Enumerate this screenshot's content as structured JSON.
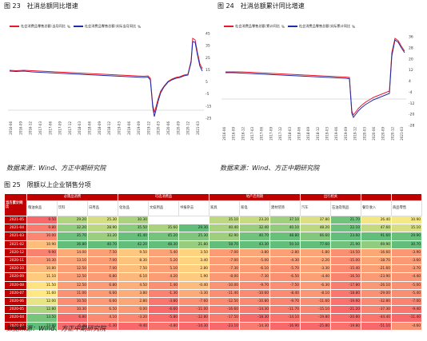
{
  "fig23": {
    "title_num": "图 23",
    "title": "社消总额同比增速",
    "legend": [
      {
        "label": "社会消费品零售总额:当月同比",
        "unit": "%",
        "color": "#e8192c"
      },
      {
        "label": "社会消费品零售总额:实际当月同比",
        "unit": "%",
        "color": "#1f2ea8"
      }
    ],
    "y_ticks": [
      "45",
      "35",
      "25",
      "15",
      "5",
      "-5",
      "-15",
      "-25"
    ],
    "x_ticks": [
      "2016-06",
      "2016-09",
      "2016-12",
      "2017-03",
      "2017-06",
      "2017-09",
      "2017-12",
      "2018-03",
      "2018-06",
      "2018-09",
      "2018-12",
      "2019-03",
      "2019-06",
      "2019-09",
      "2019-12",
      "2020-03",
      "2020-06",
      "2020-09",
      "2020-12",
      "2021-03"
    ]
  },
  "fig24": {
    "title_num": "图 24",
    "title": "社消总额累计同比增速",
    "legend": [
      {
        "label": "社会消费品零售总额:累计同比",
        "unit": "%",
        "color": "#e8192c"
      },
      {
        "label": "社会消费品零售总额:实际累计同比",
        "unit": "%",
        "color": "#1f2ea8"
      }
    ],
    "y_ticks": [
      "36",
      "28",
      "20",
      "12",
      "4",
      "-4",
      "-12",
      "-20",
      "-28"
    ],
    "x_ticks": [
      "2016-06",
      "2016-09",
      "2016-12",
      "2017-03",
      "2017-06",
      "2017-09",
      "2017-12",
      "2018-03",
      "2018-06",
      "2018-09",
      "2018-12",
      "2019-03",
      "2019-06",
      "2019-09",
      "2019-12",
      "2020-03",
      "2020-06",
      "2020-09",
      "2020-12",
      "2021-03"
    ]
  },
  "source1": "数据来源：Wind、方正中期研究院",
  "source2": "数据来源：Wind、方正中期研究院",
  "source3": "数据来源：Wind、方正中期研究院",
  "fig25": {
    "title_num": "图 25",
    "title": "限额以上企业销售分项",
    "corner": "当方累计同比",
    "groups": [
      {
        "label": "必需品消费",
        "span": 3
      },
      {
        "label": "可选消费品",
        "span": 3
      },
      {
        "label": "地产后周期",
        "span": 3
      },
      {
        "label": "出行相关",
        "span": 2
      },
      {
        "label": "",
        "span": 1
      },
      {
        "label": "",
        "span": 1
      }
    ],
    "columns": [
      "粮油食品",
      "饮料",
      "日用品",
      "化妆品",
      "文娱用品",
      "书报杂志",
      "家具",
      "家电",
      "建材装饰",
      "汽车",
      "石油及制品",
      "餐饮收入",
      "商品零售"
    ],
    "rows": [
      {
        "date": "2021-05",
        "values": [
          "9.50",
          "29.20",
          "25.30",
          "30.30",
          "",
          "",
          "35.10",
          "23.20",
          "37.10",
          "37.80",
          "21.70",
          "26.40",
          "10.90"
        ]
      },
      {
        "date": "2021-04",
        "values": [
          "9.80",
          "32.20",
          "28.90",
          "35.50",
          "35.60",
          "29.30",
          "40.40",
          "32.40",
          "40.10",
          "48.20",
          "22.10",
          "47.60",
          "15.10"
        ]
      },
      {
        "date": "2021-03",
        "values": [
          "10.00",
          "35.70",
          "33.20",
          "41.40",
          "45.20",
          "25.30",
          "42.90",
          "40.70",
          "48.80",
          "66.60",
          "23.60",
          "91.60",
          "29.90"
        ]
      },
      {
        "date": "2021-02",
        "values": [
          "10.90",
          "36.80",
          "40.70",
          "42.20",
          "48.30",
          "21.80",
          "58.70",
          "43.30",
          "50.10",
          "77.60",
          "21.90",
          "69.90",
          "30.70"
        ]
      },
      {
        "date": "2020-12",
        "values": [
          "9.90",
          "14.00",
          "7.50",
          "9.50",
          "5.40",
          "3.50",
          "-7.00",
          "-3.80",
          "-2.80",
          "-1.80",
          "-14.50",
          "-16.60",
          "-3.90"
        ]
      },
      {
        "date": "2020-11",
        "values": [
          "10.30",
          "13.10",
          "7.00",
          "8.30",
          "5.20",
          "3.40",
          "-7.00",
          "-5.00",
          "-4.30",
          "-2.20",
          "-15.00",
          "-18.70",
          "-3.60"
        ]
      },
      {
        "date": "2020-10",
        "values": [
          "10.80",
          "12.50",
          "7.00",
          "7.50",
          "5.10",
          "2.80",
          "-7.30",
          "-6.10",
          "-5.70",
          "-3.30",
          "-15.40",
          "-21.60",
          "-3.70"
        ]
      },
      {
        "date": "2020-09",
        "values": [
          "11.10",
          "12.50",
          "6.80",
          "6.10",
          "4.20",
          "1.90",
          "-8.00",
          "-7.30",
          "-6.50",
          "-4.40",
          "-16.50",
          "-23.90",
          "-4.40"
        ]
      },
      {
        "date": "2020-08",
        "values": [
          "11.50",
          "12.50",
          "6.80",
          "4.50",
          "1.40",
          "-0.40",
          "-10.00",
          "-9.70",
          "-7.50",
          "-6.30",
          "-17.80",
          "-26.10",
          "-5.00"
        ]
      },
      {
        "date": "2020-07",
        "values": [
          "11.60",
          "11.00",
          "6.60",
          "3.80",
          "-1.30",
          "-3.30",
          "-11.40",
          "-10.60",
          "-8.40",
          "-8.10",
          "-18.80",
          "-29.00",
          "-5.40"
        ]
      },
      {
        "date": "2020-06",
        "values": [
          "12.00",
          "10.50",
          "6.60",
          "2.80",
          "-3.80",
          "-7.60",
          "-12.50",
          "-10.80",
          "-9.70",
          "-11.60",
          "-19.60",
          "-32.80",
          "-7.00"
        ]
      },
      {
        "date": "2020-05",
        "values": [
          "12.80",
          "10.30",
          "6.50",
          "0.00",
          "-6.60",
          "-11.00",
          "-16.60",
          "-14.30",
          "-11.70",
          "-15.10",
          "-21.20",
          "-37.30",
          "-9.40"
        ]
      },
      {
        "date": "2020-04",
        "values": [
          "13.50",
          "6.80",
          "4.10",
          "-3.20",
          "-5.80",
          "-12.80",
          "-17.50",
          "-18.30",
          "-14.10",
          "-19.80",
          "-20.80",
          "-44.40",
          "-11.40"
        ]
      },
      {
        "date": "2020-03",
        "values": [
          "13.80",
          "6.30",
          "-1.30",
          "-9.40",
          "-4.80",
          "-14.30",
          "-23.10",
          "-14.30",
          "-16.90",
          "-25.80",
          "-19.80",
          "-51.10",
          "-4.60"
        ]
      }
    ]
  }
}
